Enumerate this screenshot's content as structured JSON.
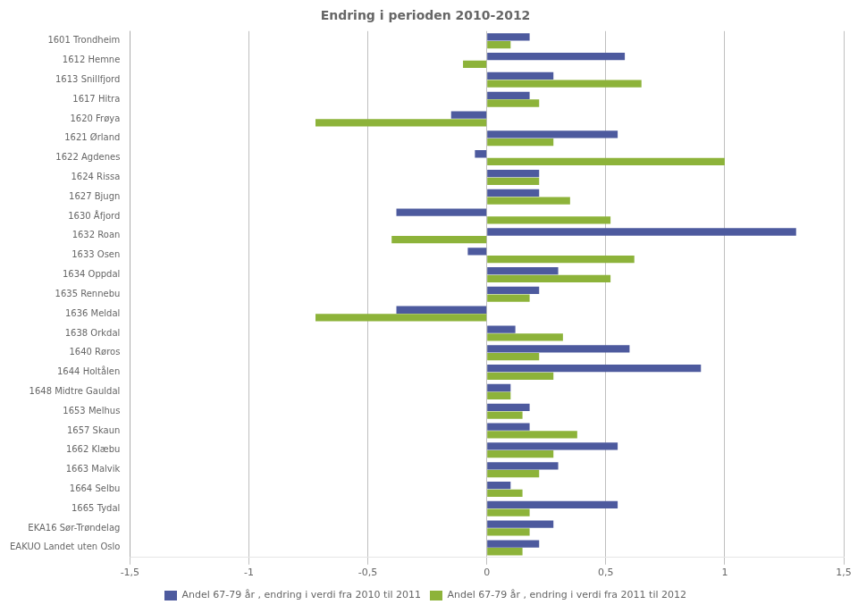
{
  "chart_data": {
    "type": "bar",
    "orientation": "horizontal",
    "title": "Endring i perioden 2010-2012",
    "categories": [
      "1601 Trondheim",
      "1612 Hemne",
      "1613 Snillfjord",
      "1617 Hitra",
      "1620 Frøya",
      "1621 Ørland",
      "1622 Agdenes",
      "1624 Rissa",
      "1627 Bjugn",
      "1630 Åfjord",
      "1632 Roan",
      "1633 Osen",
      "1634 Oppdal",
      "1635 Rennebu",
      "1636 Meldal",
      "1638 Orkdal",
      "1640 Røros",
      "1644 Holtålen",
      "1648 Midtre Gauldal",
      "1653 Melhus",
      "1657 Skaun",
      "1662 Klæbu",
      "1663 Malvik",
      "1664 Selbu",
      "1665 Tydal",
      "EKA16 Sør-Trøndelag",
      "EAKUO Landet uten Oslo"
    ],
    "series": [
      {
        "name": "Andel 67-79 år , endring i verdi fra 2010 til 2011",
        "color": "#4d5a9e",
        "values": [
          0.18,
          0.58,
          0.28,
          0.18,
          -0.15,
          0.55,
          -0.05,
          0.22,
          0.22,
          -0.38,
          1.3,
          -0.08,
          0.3,
          0.22,
          -0.38,
          0.12,
          0.6,
          0.9,
          0.1,
          0.18,
          0.18,
          0.55,
          0.3,
          0.1,
          0.55,
          0.28,
          0.22
        ]
      },
      {
        "name": "Andel 67-79 år , endring i verdi fra 2011 til 2012",
        "color": "#8db33a",
        "values": [
          0.1,
          -0.1,
          0.65,
          0.22,
          -0.72,
          0.28,
          1.0,
          0.22,
          0.35,
          0.52,
          -0.4,
          0.62,
          0.52,
          0.18,
          -0.72,
          0.32,
          0.22,
          0.28,
          0.1,
          0.15,
          0.38,
          0.28,
          0.22,
          0.15,
          0.18,
          0.18,
          0.15
        ]
      }
    ],
    "xlim": [
      -1.5,
      1.5
    ],
    "xticks": [
      {
        "value": -1.5,
        "label": "-1,5"
      },
      -1,
      {
        "value": -0.5,
        "label": "-0,5"
      },
      0,
      {
        "value": 0.5,
        "label": "0,5"
      },
      1,
      {
        "value": 1.5,
        "label": "1,5"
      }
    ],
    "grid": true,
    "legend": "bottom"
  }
}
